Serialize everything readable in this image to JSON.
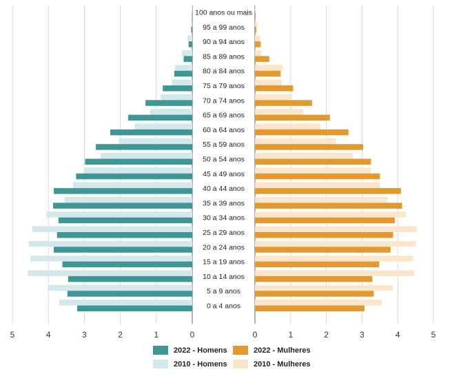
{
  "chart_data": {
    "type": "bar",
    "orientation": "horizontal-pyramid",
    "title": "",
    "categories": [
      "100 anos ou mais",
      "95 a 99 anos",
      "90 a 94 anos",
      "85 a 89 anos",
      "80 a 84 anos",
      "75 a 79 anos",
      "70 a 74 anos",
      "65 a 69 anos",
      "60 a 64 anos",
      "55 a 59 anos",
      "50 a 54 anos",
      "45 a 49 anos",
      "40 a 44 anos",
      "35 a 39 anos",
      "30 a 34 anos",
      "25 a 29 anos",
      "20 a 24 anos",
      "15 a 19 anos",
      "10 a 14 anos",
      "5 a 9 anos",
      "0 a 4 anos"
    ],
    "series": [
      {
        "name": "2010 - Homens",
        "side": "left",
        "color": "#d3e8ea",
        "values": [
          0.01,
          0.04,
          0.13,
          0.29,
          0.48,
          0.57,
          0.88,
          1.17,
          1.6,
          2.04,
          2.55,
          3.0,
          3.32,
          3.55,
          4.05,
          4.45,
          4.55,
          4.5,
          4.57,
          4.02,
          3.7
        ]
      },
      {
        "name": "2022 - Homens",
        "side": "left",
        "color": "#3f9694",
        "values": [
          0.01,
          0.03,
          0.1,
          0.24,
          0.5,
          0.82,
          1.3,
          1.78,
          2.28,
          2.68,
          2.98,
          3.23,
          3.85,
          3.87,
          3.72,
          3.76,
          3.85,
          3.61,
          3.45,
          3.47,
          3.2
        ]
      },
      {
        "name": "2010 - Mulheres",
        "side": "right",
        "color": "#fbe6cc",
        "values": [
          0.02,
          0.06,
          0.14,
          0.18,
          0.78,
          0.75,
          1.04,
          1.35,
          1.83,
          2.26,
          2.74,
          3.25,
          3.5,
          3.72,
          4.23,
          4.53,
          4.52,
          4.43,
          4.47,
          3.86,
          3.55
        ]
      },
      {
        "name": "2022 - Mulheres",
        "side": "right",
        "color": "#e29a30",
        "values": [
          0.02,
          0.04,
          0.16,
          0.4,
          0.72,
          1.07,
          1.6,
          2.1,
          2.62,
          3.03,
          3.25,
          3.5,
          4.09,
          4.12,
          3.92,
          3.87,
          3.8,
          3.48,
          3.29,
          3.33,
          3.07
        ]
      }
    ],
    "xlim_left": [
      0,
      5
    ],
    "xlim_right": [
      0,
      5
    ],
    "left_ticks": [
      "5",
      "4",
      "3",
      "2",
      "1",
      "0"
    ],
    "right_ticks": [
      "0",
      "1",
      "2",
      "3",
      "4",
      "5"
    ],
    "grid": true,
    "legend_position": "bottom-center"
  },
  "legend": {
    "items": [
      {
        "label": "2022 - Homens",
        "color": "#3f9694"
      },
      {
        "label": "2022 - Mulheres",
        "color": "#e29a30"
      },
      {
        "label": "2010 - Homens",
        "color": "#d3e8ea"
      },
      {
        "label": "2010 - Mulheres",
        "color": "#fbe6cc"
      }
    ]
  }
}
